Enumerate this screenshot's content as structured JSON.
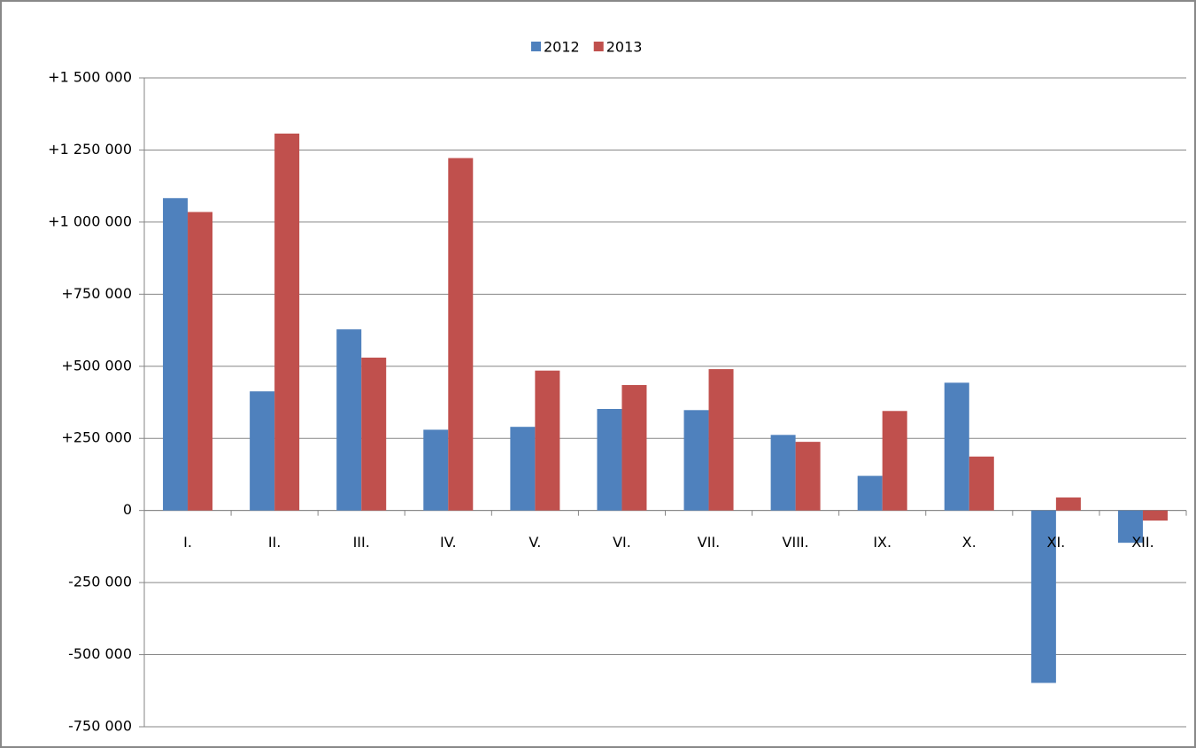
{
  "chart_data": {
    "type": "bar",
    "categories": [
      "I.",
      "II.",
      "III.",
      "IV.",
      "V.",
      "VI.",
      "VII.",
      "VIII.",
      "IX.",
      "X.",
      "XI.",
      "XII."
    ],
    "series": [
      {
        "name": "2012",
        "color": "#4f81bd",
        "values": [
          1083000,
          413000,
          628000,
          280000,
          290000,
          352000,
          348000,
          262000,
          120000,
          443000,
          -598000,
          -112000
        ]
      },
      {
        "name": "2013",
        "color": "#c0504d",
        "values": [
          1035000,
          1307000,
          530000,
          1222000,
          485000,
          435000,
          490000,
          238000,
          345000,
          187000,
          45000,
          -35000
        ]
      }
    ],
    "ylim": [
      -750000,
      1500000
    ],
    "yticks": [
      {
        "value": -750000,
        "label": "-750 000"
      },
      {
        "value": -500000,
        "label": "-500 000"
      },
      {
        "value": -250000,
        "label": "-250 000"
      },
      0,
      {
        "value": 250000,
        "label": "+250 000"
      },
      {
        "value": 500000,
        "label": "+500 000"
      },
      {
        "value": 750000,
        "label": "+750 000"
      },
      {
        "value": 1000000,
        "label": "+1 000 000"
      },
      {
        "value": 1250000,
        "label": "+1 250 000"
      },
      {
        "value": 1500000,
        "label": "+1 500 000"
      }
    ],
    "grid": true,
    "legend": "top"
  }
}
